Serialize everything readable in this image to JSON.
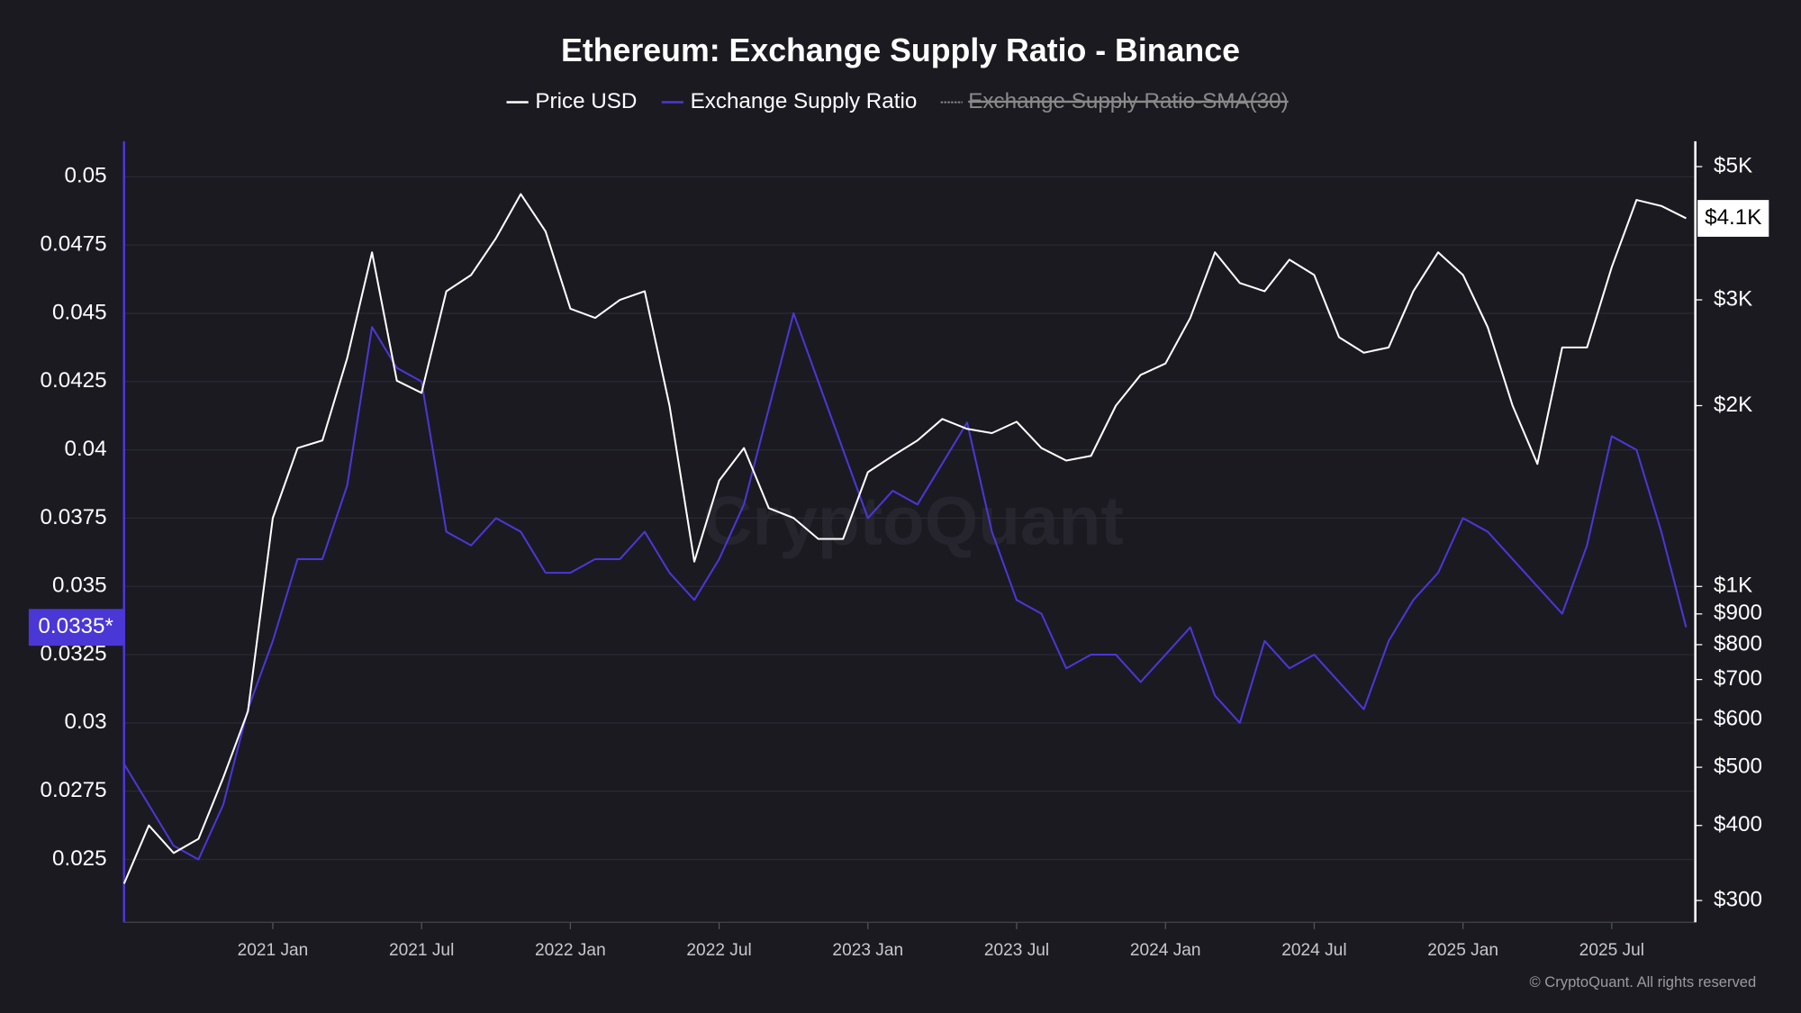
{
  "chart_data": {
    "type": "line",
    "title": "Ethereum: Exchange Supply Ratio - Binance",
    "x": [
      "2020-07",
      "2020-08",
      "2020-09",
      "2020-10",
      "2020-11",
      "2020-12",
      "2021-01",
      "2021-02",
      "2021-03",
      "2021-04",
      "2021-05",
      "2021-06",
      "2021-07",
      "2021-08",
      "2021-09",
      "2021-10",
      "2021-11",
      "2021-12",
      "2022-01",
      "2022-02",
      "2022-03",
      "2022-04",
      "2022-05",
      "2022-06",
      "2022-07",
      "2022-08",
      "2022-09",
      "2022-10",
      "2022-11",
      "2022-12",
      "2023-01",
      "2023-02",
      "2023-03",
      "2023-04",
      "2023-05",
      "2023-06",
      "2023-07",
      "2023-08",
      "2023-09",
      "2023-10",
      "2023-11",
      "2023-12",
      "2024-01",
      "2024-02",
      "2024-03",
      "2024-04",
      "2024-05",
      "2024-06",
      "2024-07",
      "2024-08",
      "2024-09",
      "2024-10",
      "2024-11",
      "2024-12",
      "2025-01",
      "2025-02",
      "2025-03",
      "2025-04",
      "2025-05",
      "2025-06",
      "2025-07",
      "2025-08",
      "2025-09",
      "2025-10"
    ],
    "series": [
      {
        "name": "Price USD",
        "color": "#ffffff",
        "axis": "y2",
        "current_label": "$4.1K",
        "values": [
          320,
          400,
          360,
          380,
          480,
          620,
          1300,
          1700,
          1750,
          2400,
          3600,
          2200,
          2100,
          3100,
          3300,
          3800,
          4500,
          3900,
          2900,
          2800,
          3000,
          3100,
          2000,
          1100,
          1500,
          1700,
          1350,
          1300,
          1200,
          1200,
          1550,
          1650,
          1750,
          1900,
          1830,
          1800,
          1880,
          1700,
          1620,
          1650,
          2000,
          2250,
          2350,
          2800,
          3600,
          3200,
          3100,
          3500,
          3300,
          2600,
          2450,
          2500,
          3100,
          3600,
          3300,
          2700,
          2000,
          1600,
          2500,
          2500,
          3400,
          4400,
          4300,
          4100
        ]
      },
      {
        "name": "Exchange Supply Ratio",
        "color": "#4a37d6",
        "current_label": "0.0335*",
        "values": [
          0.0285,
          0.027,
          0.0255,
          0.025,
          0.027,
          0.0305,
          0.033,
          0.036,
          0.036,
          0.0387,
          0.0445,
          0.043,
          0.0425,
          0.037,
          0.0365,
          0.0375,
          0.037,
          0.0355,
          0.0355,
          0.036,
          0.036,
          0.037,
          0.0355,
          0.0345,
          0.036,
          0.038,
          0.0415,
          0.045,
          0.0425,
          0.04,
          0.0375,
          0.0385,
          0.038,
          0.0395,
          0.041,
          0.037,
          0.0345,
          0.034,
          0.032,
          0.0325,
          0.0325,
          0.0315,
          0.0325,
          0.0335,
          0.031,
          0.03,
          0.033,
          0.032,
          0.0325,
          0.0315,
          0.0305,
          0.033,
          0.0345,
          0.0355,
          0.0375,
          0.037,
          0.036,
          0.035,
          0.034,
          0.0365,
          0.0405,
          0.04,
          0.037,
          0.0335
        ]
      }
    ],
    "hidden_series": [
      {
        "name": "Exchange Supply Ratio-SMA(30)",
        "color": "#8a8a8a"
      }
    ],
    "xlim": [
      "2020-07",
      "2025-10"
    ],
    "xticks": [
      {
        "value": "2021-01",
        "label": "2021 Jan"
      },
      {
        "value": "2021-07",
        "label": "2021 Jul"
      },
      {
        "value": "2022-01",
        "label": "2022 Jan"
      },
      {
        "value": "2022-07",
        "label": "2022 Jul"
      },
      {
        "value": "2023-01",
        "label": "2023 Jan"
      },
      {
        "value": "2023-07",
        "label": "2023 Jul"
      },
      {
        "value": "2024-01",
        "label": "2024 Jan"
      },
      {
        "value": "2024-07",
        "label": "2024 Jul"
      },
      {
        "value": "2025-01",
        "label": "2025 Jan"
      },
      {
        "value": "2025-07",
        "label": "2025 Jul"
      }
    ],
    "ylim": [
      0.0227,
      0.0513
    ],
    "yticks": [
      0.025,
      0.0275,
      0.03,
      0.0325,
      0.035,
      0.0375,
      0.04,
      0.0425,
      0.045,
      0.0475,
      0.05
    ],
    "y2lim": [
      276,
      5510
    ],
    "y2_log": true,
    "y2ticks": [
      {
        "value": 300,
        "label": "$300"
      },
      {
        "value": 400,
        "label": "$400"
      },
      {
        "value": 500,
        "label": "$500"
      },
      {
        "value": 600,
        "label": "$600"
      },
      {
        "value": 700,
        "label": "$700"
      },
      {
        "value": 800,
        "label": "$800"
      },
      {
        "value": 900,
        "label": "$900"
      },
      {
        "value": 1000,
        "label": "$1K"
      },
      {
        "value": 2000,
        "label": "$2K"
      },
      {
        "value": 3000,
        "label": "$3K"
      },
      {
        "value": 5000,
        "label": "$5K"
      }
    ],
    "grid": true,
    "watermark": "CryptoQuant",
    "copyright": "© CryptoQuant. All rights reserved"
  }
}
